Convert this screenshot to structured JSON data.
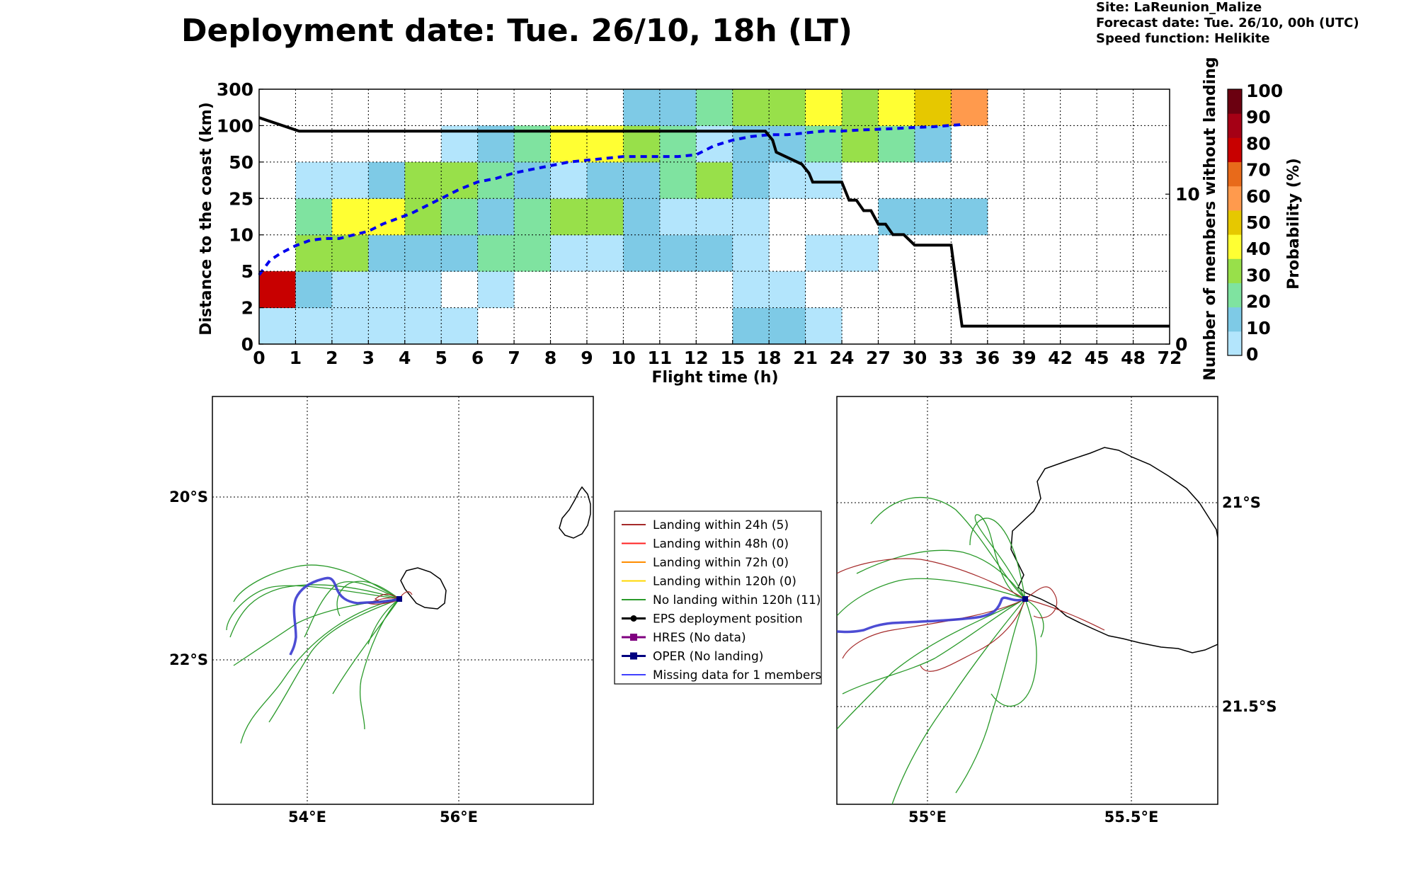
{
  "title": "Deployment date: Tue. 26/10, 18h (LT)",
  "info": {
    "site": "Site: LaReunion_Malize",
    "forecast": "Forecast date: Tue. 26/10, 00h (UTC)",
    "speed": "Speed function: Helikite"
  },
  "chart_data": [
    {
      "type": "heatmap",
      "xlabel": "Flight time (h)",
      "ylabel": "Distance to the coast (km)",
      "y2label": "Number of members without landing",
      "colorbar_label": "Probability (%)",
      "x_ticks": [
        "0",
        "1",
        "2",
        "3",
        "4",
        "5",
        "6",
        "7",
        "8",
        "9",
        "10",
        "11",
        "12",
        "15",
        "18",
        "21",
        "24",
        "27",
        "30",
        "33",
        "36",
        "39",
        "42",
        "45",
        "48",
        "72"
      ],
      "y_ticks": [
        "0",
        "2",
        "5",
        "10",
        "25",
        "50",
        "100",
        "300"
      ],
      "y2_ticks": [
        "0",
        "10"
      ],
      "y2_range": [
        0,
        17
      ],
      "colorbar_ticks": [
        "0",
        "10",
        "20",
        "30",
        "40",
        "50",
        "60",
        "70",
        "80",
        "90",
        "100"
      ],
      "colorbar_colors": [
        "#b3e5fc",
        "#7ecae6",
        "#7fe3a0",
        "#98e04a",
        "#ffff33",
        "#e6c800",
        "#ff9a4d",
        "#e86a1a",
        "#c80000",
        "#a50015",
        "#6b0010"
      ],
      "grid": true,
      "cells_note": "cells: [x_bin_index, y_bin_index, probability_class]",
      "cells": [
        [
          0,
          0,
          0
        ],
        [
          1,
          0,
          0
        ],
        [
          2,
          0,
          0
        ],
        [
          3,
          0,
          0
        ],
        [
          4,
          0,
          0
        ],
        [
          5,
          0,
          0
        ],
        [
          13,
          0,
          1
        ],
        [
          14,
          0,
          1
        ],
        [
          15,
          0,
          0
        ],
        [
          0,
          1,
          8
        ],
        [
          1,
          1,
          1
        ],
        [
          2,
          1,
          0
        ],
        [
          3,
          1,
          0
        ],
        [
          4,
          1,
          0
        ],
        [
          6,
          1,
          0
        ],
        [
          13,
          1,
          0
        ],
        [
          14,
          1,
          0
        ],
        [
          1,
          2,
          3
        ],
        [
          2,
          2,
          3
        ],
        [
          3,
          2,
          1
        ],
        [
          4,
          2,
          1
        ],
        [
          5,
          2,
          1
        ],
        [
          6,
          2,
          2
        ],
        [
          7,
          2,
          2
        ],
        [
          8,
          2,
          0
        ],
        [
          9,
          2,
          0
        ],
        [
          10,
          2,
          1
        ],
        [
          11,
          2,
          1
        ],
        [
          12,
          2,
          1
        ],
        [
          13,
          2,
          0
        ],
        [
          15,
          2,
          0
        ],
        [
          16,
          2,
          0
        ],
        [
          1,
          3,
          2
        ],
        [
          2,
          3,
          4
        ],
        [
          3,
          3,
          4
        ],
        [
          4,
          3,
          3
        ],
        [
          5,
          3,
          2
        ],
        [
          6,
          3,
          1
        ],
        [
          7,
          3,
          2
        ],
        [
          8,
          3,
          3
        ],
        [
          9,
          3,
          3
        ],
        [
          10,
          3,
          1
        ],
        [
          11,
          3,
          0
        ],
        [
          12,
          3,
          0
        ],
        [
          13,
          3,
          0
        ],
        [
          17,
          3,
          1
        ],
        [
          18,
          3,
          1
        ],
        [
          19,
          3,
          1
        ],
        [
          1,
          4,
          0
        ],
        [
          2,
          4,
          0
        ],
        [
          3,
          4,
          1
        ],
        [
          4,
          4,
          3
        ],
        [
          5,
          4,
          3
        ],
        [
          6,
          4,
          2
        ],
        [
          7,
          4,
          1
        ],
        [
          8,
          4,
          0
        ],
        [
          9,
          4,
          1
        ],
        [
          10,
          4,
          1
        ],
        [
          11,
          4,
          2
        ],
        [
          12,
          4,
          3
        ],
        [
          13,
          4,
          1
        ],
        [
          14,
          4,
          0
        ],
        [
          15,
          4,
          0
        ],
        [
          5,
          5,
          0
        ],
        [
          6,
          5,
          1
        ],
        [
          7,
          5,
          2
        ],
        [
          8,
          5,
          4
        ],
        [
          9,
          5,
          4
        ],
        [
          10,
          5,
          3
        ],
        [
          11,
          5,
          2
        ],
        [
          12,
          5,
          0
        ],
        [
          13,
          5,
          1
        ],
        [
          14,
          5,
          1
        ],
        [
          15,
          5,
          2
        ],
        [
          16,
          5,
          3
        ],
        [
          17,
          5,
          2
        ],
        [
          18,
          5,
          1
        ],
        [
          10,
          6,
          1
        ],
        [
          11,
          6,
          1
        ],
        [
          12,
          6,
          2
        ],
        [
          13,
          6,
          3
        ],
        [
          14,
          6,
          3
        ],
        [
          15,
          6,
          4
        ],
        [
          16,
          6,
          3
        ],
        [
          17,
          6,
          4
        ],
        [
          18,
          6,
          5
        ],
        [
          19,
          6,
          6
        ]
      ],
      "series": [
        {
          "name": "",
          "style": "black step line (right axis)",
          "x_bin": [
            0,
            1.1,
            2,
            3,
            4,
            5,
            6,
            7,
            8,
            9,
            10,
            11,
            12,
            13,
            13.9,
            14.1,
            14.2,
            14.9,
            15.1,
            15.2,
            16,
            16.2,
            16.4,
            16.6,
            16.8,
            17,
            17.2,
            17.4,
            17.7,
            18,
            18.5,
            19,
            19.3,
            20,
            21,
            22,
            23,
            24,
            25
          ],
          "members": [
            15.1,
            14.2,
            14.2,
            14.2,
            14.2,
            14.2,
            14.2,
            14.2,
            14.2,
            14.2,
            14.2,
            14.2,
            14.2,
            14.2,
            14.2,
            13.6,
            12.8,
            12.0,
            11.4,
            10.8,
            10.8,
            9.6,
            9.6,
            8.9,
            8.9,
            8.0,
            8.0,
            7.3,
            7.3,
            6.6,
            6.6,
            6.6,
            1.2,
            1.2,
            1.2,
            1.2,
            1.2,
            1.2,
            1.2
          ]
        },
        {
          "name": "",
          "style": "blue dashed line (median distance)",
          "x_bin": [
            0,
            0.3,
            0.6,
            1,
            1.4,
            1.8,
            2.2,
            2.6,
            3,
            3.4,
            3.8,
            4.2,
            4.6,
            5,
            5.5,
            6,
            6.5,
            7,
            7.5,
            8,
            8.5,
            9,
            9.5,
            10,
            10.5,
            11,
            11.5,
            12,
            12.5,
            13,
            13.5,
            14,
            14.5,
            15,
            15.5,
            16,
            16.5,
            17,
            17.5,
            18,
            18.5,
            19.3
          ],
          "y_bin": [
            1.9,
            2.3,
            2.5,
            2.7,
            2.85,
            2.9,
            2.9,
            3.0,
            3.1,
            3.3,
            3.45,
            3.6,
            3.8,
            4.0,
            4.25,
            4.45,
            4.55,
            4.7,
            4.8,
            4.9,
            5.0,
            5.05,
            5.1,
            5.15,
            5.15,
            5.15,
            5.15,
            5.2,
            5.45,
            5.6,
            5.7,
            5.75,
            5.75,
            5.8,
            5.85,
            5.85,
            5.88,
            5.9,
            5.92,
            5.95,
            5.97,
            6.03
          ]
        }
      ]
    }
  ],
  "maps": {
    "left": {
      "lat_ticks": [
        "20°S",
        "22°S"
      ],
      "lon_ticks": [
        "54°E",
        "56°E"
      ]
    },
    "right": {
      "lat_ticks": [
        "21°S",
        "21.5°S"
      ],
      "lon_ticks": [
        "55°E",
        "55.5°E"
      ]
    }
  },
  "legend": [
    {
      "label": "Landing within 24h (5)",
      "color": "#a52a2a",
      "marker": ""
    },
    {
      "label": "Landing within 48h (0)",
      "color": "#ff2020",
      "marker": ""
    },
    {
      "label": "Landing within 72h (0)",
      "color": "#ff8c00",
      "marker": ""
    },
    {
      "label": "Landing within 120h (0)",
      "color": "#ffd700",
      "marker": ""
    },
    {
      "label": "No landing within 120h (11)",
      "color": "#2a9a2a",
      "marker": ""
    },
    {
      "label": "EPS deployment position",
      "color": "#000000",
      "marker": "circle"
    },
    {
      "label": "HRES (No data)",
      "color": "#800080",
      "marker": "square"
    },
    {
      "label": "OPER (No landing)",
      "color": "#000080",
      "marker": "square"
    },
    {
      "label": "Missing data for 1 members",
      "color": "#4040ff",
      "marker": ""
    }
  ]
}
